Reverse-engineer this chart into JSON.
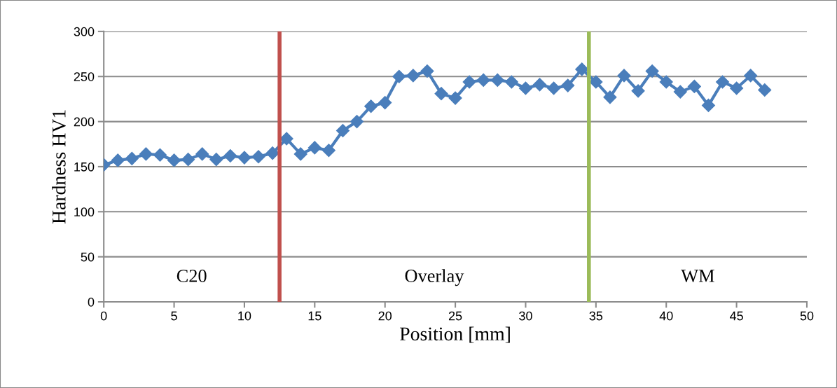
{
  "chart_data": {
    "type": "line",
    "xlabel": "Position [mm]",
    "ylabel": "Hardness HV1",
    "x": [
      0,
      1,
      2,
      3,
      4,
      5,
      6,
      7,
      8,
      9,
      10,
      11,
      12,
      13,
      14,
      15,
      16,
      17,
      18,
      19,
      20,
      21,
      22,
      23,
      24,
      25,
      26,
      27,
      28,
      29,
      30,
      31,
      32,
      33,
      34,
      35,
      36,
      37,
      38,
      39,
      40,
      41,
      42,
      43,
      44,
      45,
      46,
      47
    ],
    "series": [
      {
        "color": "#4a7ebb",
        "values": [
          152,
          157,
          159,
          164,
          163,
          157,
          158,
          164,
          158,
          162,
          160,
          161,
          165,
          181,
          164,
          171,
          168,
          190,
          200,
          217,
          221,
          250,
          251,
          256,
          231,
          226,
          244,
          246,
          246,
          244,
          237,
          241,
          237,
          240,
          258,
          244,
          227,
          251,
          234,
          256,
          244,
          233,
          239,
          218,
          244,
          237,
          251,
          235
        ]
      }
    ],
    "xlim": [
      0,
      50
    ],
    "xticks": [
      0,
      5,
      10,
      15,
      20,
      25,
      30,
      35,
      40,
      45,
      50
    ],
    "ylim": [
      0,
      300
    ],
    "yticks": [
      0,
      50,
      100,
      150,
      200,
      250,
      300
    ],
    "grid": "y",
    "marker": "diamond",
    "line_style": "solid",
    "ref_lines": [
      {
        "axis": "x",
        "value": 12.5,
        "color": "#c0504d"
      },
      {
        "axis": "x",
        "value": 34.5,
        "color": "#9bbb59"
      }
    ],
    "annotations": [
      "C20",
      "Overlay",
      "WM"
    ]
  }
}
